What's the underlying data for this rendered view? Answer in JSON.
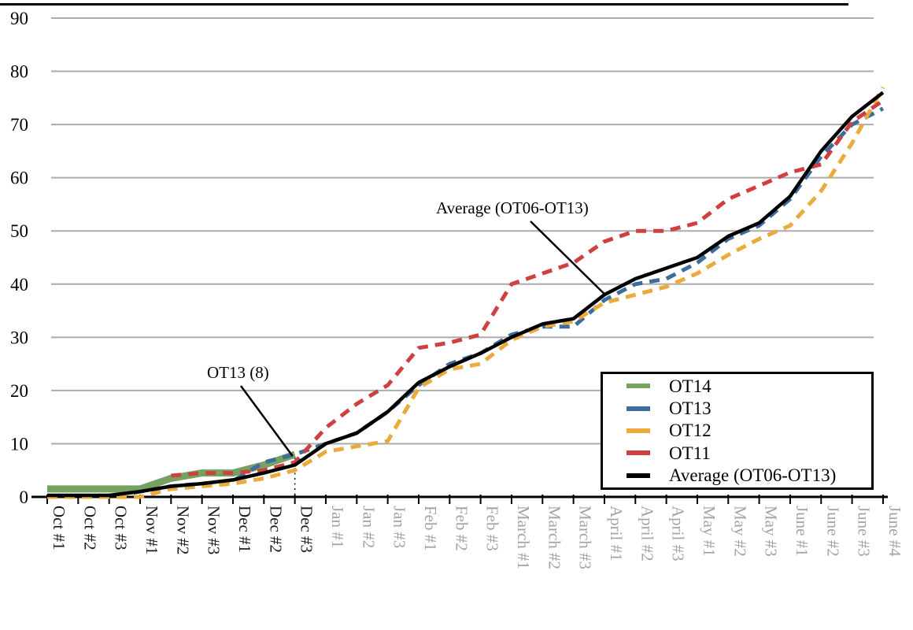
{
  "chart_data": {
    "type": "line",
    "title": "",
    "xlabel": "",
    "ylabel": "",
    "ylim": [
      0,
      90
    ],
    "yticks": [
      0,
      10,
      20,
      30,
      40,
      50,
      60,
      70,
      80,
      90
    ],
    "grid": "horizontal gray lines at every 10",
    "legend_position": "inside bottom-right, boxed",
    "categories": [
      "Oct #1",
      "Oct #2",
      "Oct #3",
      "Nov #1",
      "Nov #2",
      "Nov #3",
      "Dec #1",
      "Dec #2",
      "Dec #3",
      "Jan #1",
      "Jan #2",
      "Jan #3",
      "Feb #1",
      "Feb #2",
      "Feb #3",
      "March #1",
      "March #2",
      "March #3",
      "April #1",
      "April #2",
      "April #3",
      "May #1",
      "May #2",
      "May #3",
      "June #1",
      "June #2",
      "June #3",
      "June #4"
    ],
    "x_label_style": {
      "black_label_count": 9,
      "black_color": "#1a1a1a",
      "gray_color": "#a3a3a3",
      "rotation_deg": 90
    },
    "series": [
      {
        "name": "OT14",
        "color": "#76a25f",
        "style": "solid",
        "stroke_width": 9,
        "values": [
          1.5,
          1.5,
          1.5,
          1.5,
          3.5,
          4.5,
          4.5,
          6,
          8,
          null,
          null,
          null,
          null,
          null,
          null,
          null,
          null,
          null,
          null,
          null,
          null,
          null,
          null,
          null,
          null,
          null,
          null,
          null
        ]
      },
      {
        "name": "OT13",
        "color": "#3d6c9e",
        "style": "dashed",
        "stroke_width": 5,
        "values": [
          0,
          0,
          0,
          1,
          2,
          2.5,
          3,
          6.5,
          8,
          10,
          12,
          16,
          21,
          25,
          27,
          30.5,
          32,
          32,
          37,
          40,
          41,
          44,
          48.5,
          51,
          56,
          64,
          70,
          73
        ]
      },
      {
        "name": "OT12",
        "color": "#ebaa3c",
        "style": "dashed",
        "stroke_width": 5,
        "values": [
          0,
          0,
          0,
          0,
          1.5,
          2,
          2.5,
          3.5,
          5,
          8.5,
          9.5,
          10.5,
          20.5,
          24,
          25,
          29.5,
          32,
          33,
          36.5,
          38,
          39.5,
          42,
          45.5,
          48.5,
          51,
          57.5,
          66.5,
          77
        ]
      },
      {
        "name": "OT11",
        "color": "#ce4141",
        "style": "dashed",
        "stroke_width": 5,
        "values": [
          null,
          null,
          null,
          null,
          4,
          4.5,
          4.5,
          5,
          6.5,
          13,
          17.5,
          21,
          28,
          29,
          30.5,
          40,
          42,
          44,
          48,
          50,
          50,
          51.5,
          56,
          58.5,
          61,
          62.5,
          70.5,
          74.5
        ]
      },
      {
        "name": "Average (OT06-OT13)",
        "color": "#000000",
        "style": "solid",
        "stroke_width": 4.5,
        "values": [
          0.3,
          0.3,
          0.3,
          1,
          2,
          2.5,
          3.2,
          4.5,
          6,
          10,
          12,
          16,
          21.5,
          24.5,
          27,
          30,
          32.5,
          33.5,
          38,
          41,
          43,
          45,
          49,
          51.5,
          56.5,
          65,
          71.5,
          76
        ]
      }
    ],
    "annotations": [
      {
        "text": "OT13 (8)",
        "target_category": "Dec #3",
        "target_value": 8
      },
      {
        "text": "Average (OT06-OT13)",
        "target_category": "April #1",
        "target_value": 38
      }
    ],
    "reference_line": {
      "type": "dotted vertical",
      "category": "Dec #3",
      "from_value": 8,
      "to_value": 0
    }
  },
  "legend": {
    "items": [
      {
        "label": "OT14"
      },
      {
        "label": "OT13"
      },
      {
        "label": "OT12"
      },
      {
        "label": "OT11"
      },
      {
        "label": "Average (OT06-OT13)"
      }
    ]
  }
}
